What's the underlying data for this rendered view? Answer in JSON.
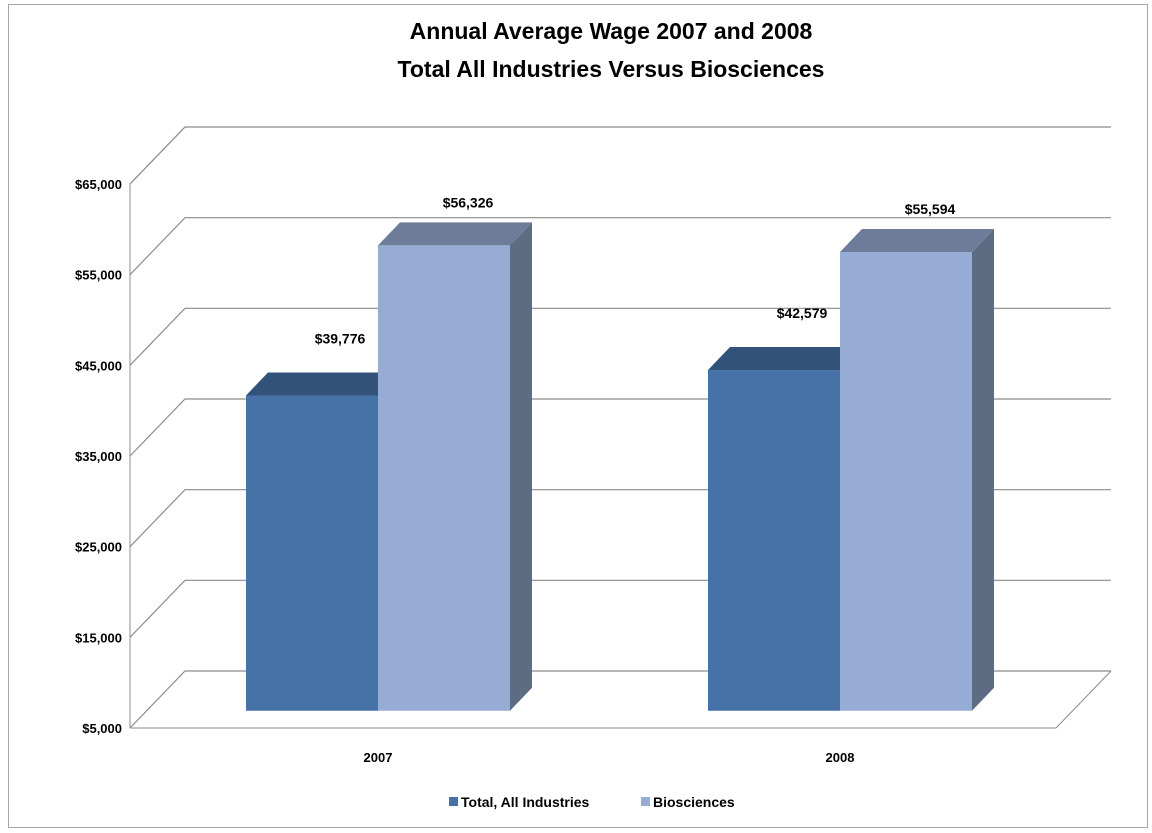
{
  "chart_data": {
    "type": "bar",
    "title_lines": [
      "Annual Average Wage 2007 and 2008",
      "Total All Industries Versus Biosciences"
    ],
    "categories": [
      "2007",
      "2008"
    ],
    "series": [
      {
        "name": "Total, All Industries",
        "values": [
          39776,
          42579
        ],
        "labels": [
          "$39,776",
          "$42,579"
        ],
        "color": "#4672a8"
      },
      {
        "name": "Biosciences",
        "values": [
          56326,
          55594
        ],
        "labels": [
          "$56,326",
          "$55,594"
        ],
        "color": "#96acd4"
      }
    ],
    "ylim": [
      5000,
      65000
    ],
    "yticks": [
      5000,
      15000,
      25000,
      35000,
      45000,
      55000,
      65000
    ],
    "ytick_labels": [
      "$5,000",
      "$15,000",
      "$25,000",
      "$35,000",
      "$45,000",
      "$55,000",
      "$65,000"
    ],
    "grid": true,
    "legend": "bottom",
    "three_d": true
  }
}
